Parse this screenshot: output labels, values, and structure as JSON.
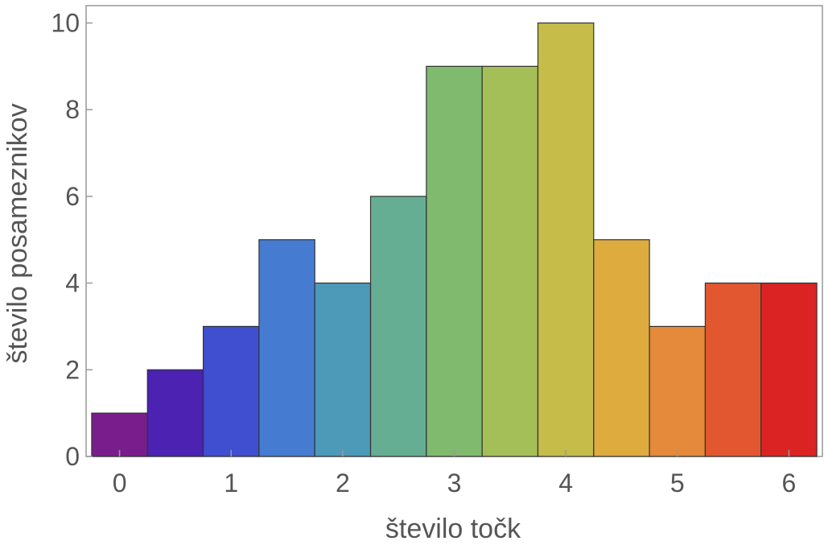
{
  "chart_data": {
    "type": "bar",
    "title": "",
    "xlabel": "število točk",
    "ylabel": "število posameznikov",
    "bin_width": 0.5,
    "x_start": -0.25,
    "values": [
      1,
      2,
      3,
      5,
      4,
      6,
      9,
      9,
      10,
      5,
      3,
      4,
      4
    ],
    "colors": [
      "#7a1d8c",
      "#4b22b2",
      "#3f4fd0",
      "#457cd2",
      "#4c9ab8",
      "#66ae93",
      "#7fba6e",
      "#a4bf58",
      "#c6bc4a",
      "#deab3f",
      "#e5893a",
      "#e2572f",
      "#db2324"
    ],
    "xlim": [
      -0.3,
      6.3
    ],
    "ylim": [
      0,
      10.4
    ],
    "x_ticks": [
      "0",
      "1",
      "2",
      "3",
      "4",
      "5",
      "6"
    ],
    "y_ticks": [
      "0",
      "2",
      "4",
      "6",
      "8",
      "10"
    ],
    "grid": false,
    "legend": "none"
  }
}
